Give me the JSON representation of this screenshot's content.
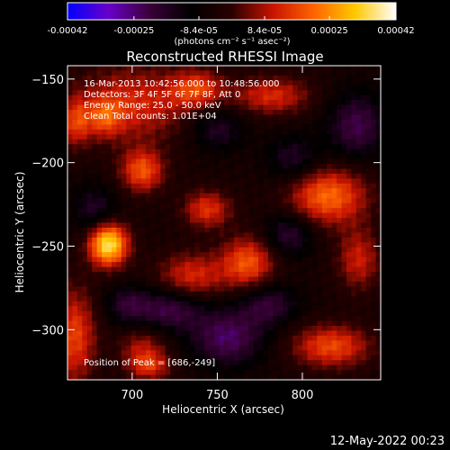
{
  "colorbar": {
    "ticks": [
      "-0.00042",
      "-0.00025",
      "-8.4e-05",
      "8.4e-05",
      "0.00025",
      "0.00042"
    ],
    "tick_values": [
      -0.00042,
      -0.00025,
      -8.4e-05,
      8.4e-05,
      0.00025,
      0.00042
    ],
    "range": [
      -0.00042,
      0.00042
    ],
    "units_label": "(photons cm⁻² s⁻¹ asec⁻²)",
    "colormap": [
      "#0000ff",
      "#6a00c8",
      "#3a0038",
      "#000000",
      "#2a0000",
      "#c81400",
      "#ff6400",
      "#ffc800",
      "#ffffff"
    ]
  },
  "annotations": {
    "time_range": "16-Mar-2013 10:42:56.000 to 10:48:56.000",
    "detectors": "Detectors: 3F 4F 5F 6F 7F 8F, Att 0",
    "energy": "Energy Range: 25.0 - 50.0 keV",
    "clean": "Clean    Total counts: 1.01E+04",
    "peak": "Position of Peak = [686,-249]"
  },
  "footer_date": "12-May-2022 00:23",
  "chart_data": {
    "type": "heatmap",
    "title": "Reconstructed RHESSI Image",
    "xlabel": "Heliocentric X (arcsec)",
    "ylabel": "Heliocentric Y (arcsec)",
    "xlim": [
      662,
      846
    ],
    "ylim": [
      -330,
      -142
    ],
    "xticks": [
      700,
      750,
      800
    ],
    "yticks": [
      -150,
      -200,
      -250,
      -300
    ],
    "peak": {
      "x": 686,
      "y": -249
    },
    "blobs": [
      {
        "x": 686,
        "y": -249,
        "sx": 8,
        "sy": 9,
        "amp": 1.0
      },
      {
        "x": 700,
        "y": -165,
        "sx": 24,
        "sy": 16,
        "amp": 0.42
      },
      {
        "x": 706,
        "y": -205,
        "sx": 9,
        "sy": 9,
        "amp": 0.55
      },
      {
        "x": 738,
        "y": -156,
        "sx": 11,
        "sy": 8,
        "amp": 0.45
      },
      {
        "x": 782,
        "y": -160,
        "sx": 16,
        "sy": 8,
        "amp": 0.42
      },
      {
        "x": 744,
        "y": -228,
        "sx": 10,
        "sy": 8,
        "amp": 0.45
      },
      {
        "x": 735,
        "y": -268,
        "sx": 14,
        "sy": 10,
        "amp": 0.42
      },
      {
        "x": 768,
        "y": -260,
        "sx": 11,
        "sy": 11,
        "amp": 0.55
      },
      {
        "x": 815,
        "y": -220,
        "sx": 16,
        "sy": 12,
        "amp": 0.62
      },
      {
        "x": 833,
        "y": -258,
        "sx": 9,
        "sy": 13,
        "amp": 0.38
      },
      {
        "x": 817,
        "y": -310,
        "sx": 16,
        "sy": 9,
        "amp": 0.52
      },
      {
        "x": 666,
        "y": -304,
        "sx": 9,
        "sy": 20,
        "amp": 0.5
      },
      {
        "x": 706,
        "y": -310,
        "sx": 10,
        "sy": 8,
        "amp": 0.3
      },
      {
        "x": 710,
        "y": -322,
        "sx": 9,
        "sy": 6,
        "amp": 0.42
      },
      {
        "x": 684,
        "y": -173,
        "sx": 7,
        "sy": 8,
        "amp": 0.35
      },
      {
        "x": 667,
        "y": -176,
        "sx": 6,
        "sy": 10,
        "amp": 0.4
      },
      {
        "x": 792,
        "y": -243,
        "sx": 10,
        "sy": 9,
        "amp": -0.35
      },
      {
        "x": 722,
        "y": -288,
        "sx": 14,
        "sy": 9,
        "amp": -0.4
      },
      {
        "x": 756,
        "y": -305,
        "sx": 15,
        "sy": 12,
        "amp": -0.45
      },
      {
        "x": 795,
        "y": -198,
        "sx": 11,
        "sy": 10,
        "amp": -0.3
      },
      {
        "x": 678,
        "y": -228,
        "sx": 9,
        "sy": 10,
        "amp": -0.3
      },
      {
        "x": 832,
        "y": -178,
        "sx": 12,
        "sy": 14,
        "amp": -0.4
      },
      {
        "x": 750,
        "y": -180,
        "sx": 11,
        "sy": 9,
        "amp": -0.3
      },
      {
        "x": 780,
        "y": -285,
        "sx": 12,
        "sy": 9,
        "amp": -0.35
      },
      {
        "x": 697,
        "y": -285,
        "sx": 9,
        "sy": 8,
        "amp": -0.3
      }
    ]
  }
}
